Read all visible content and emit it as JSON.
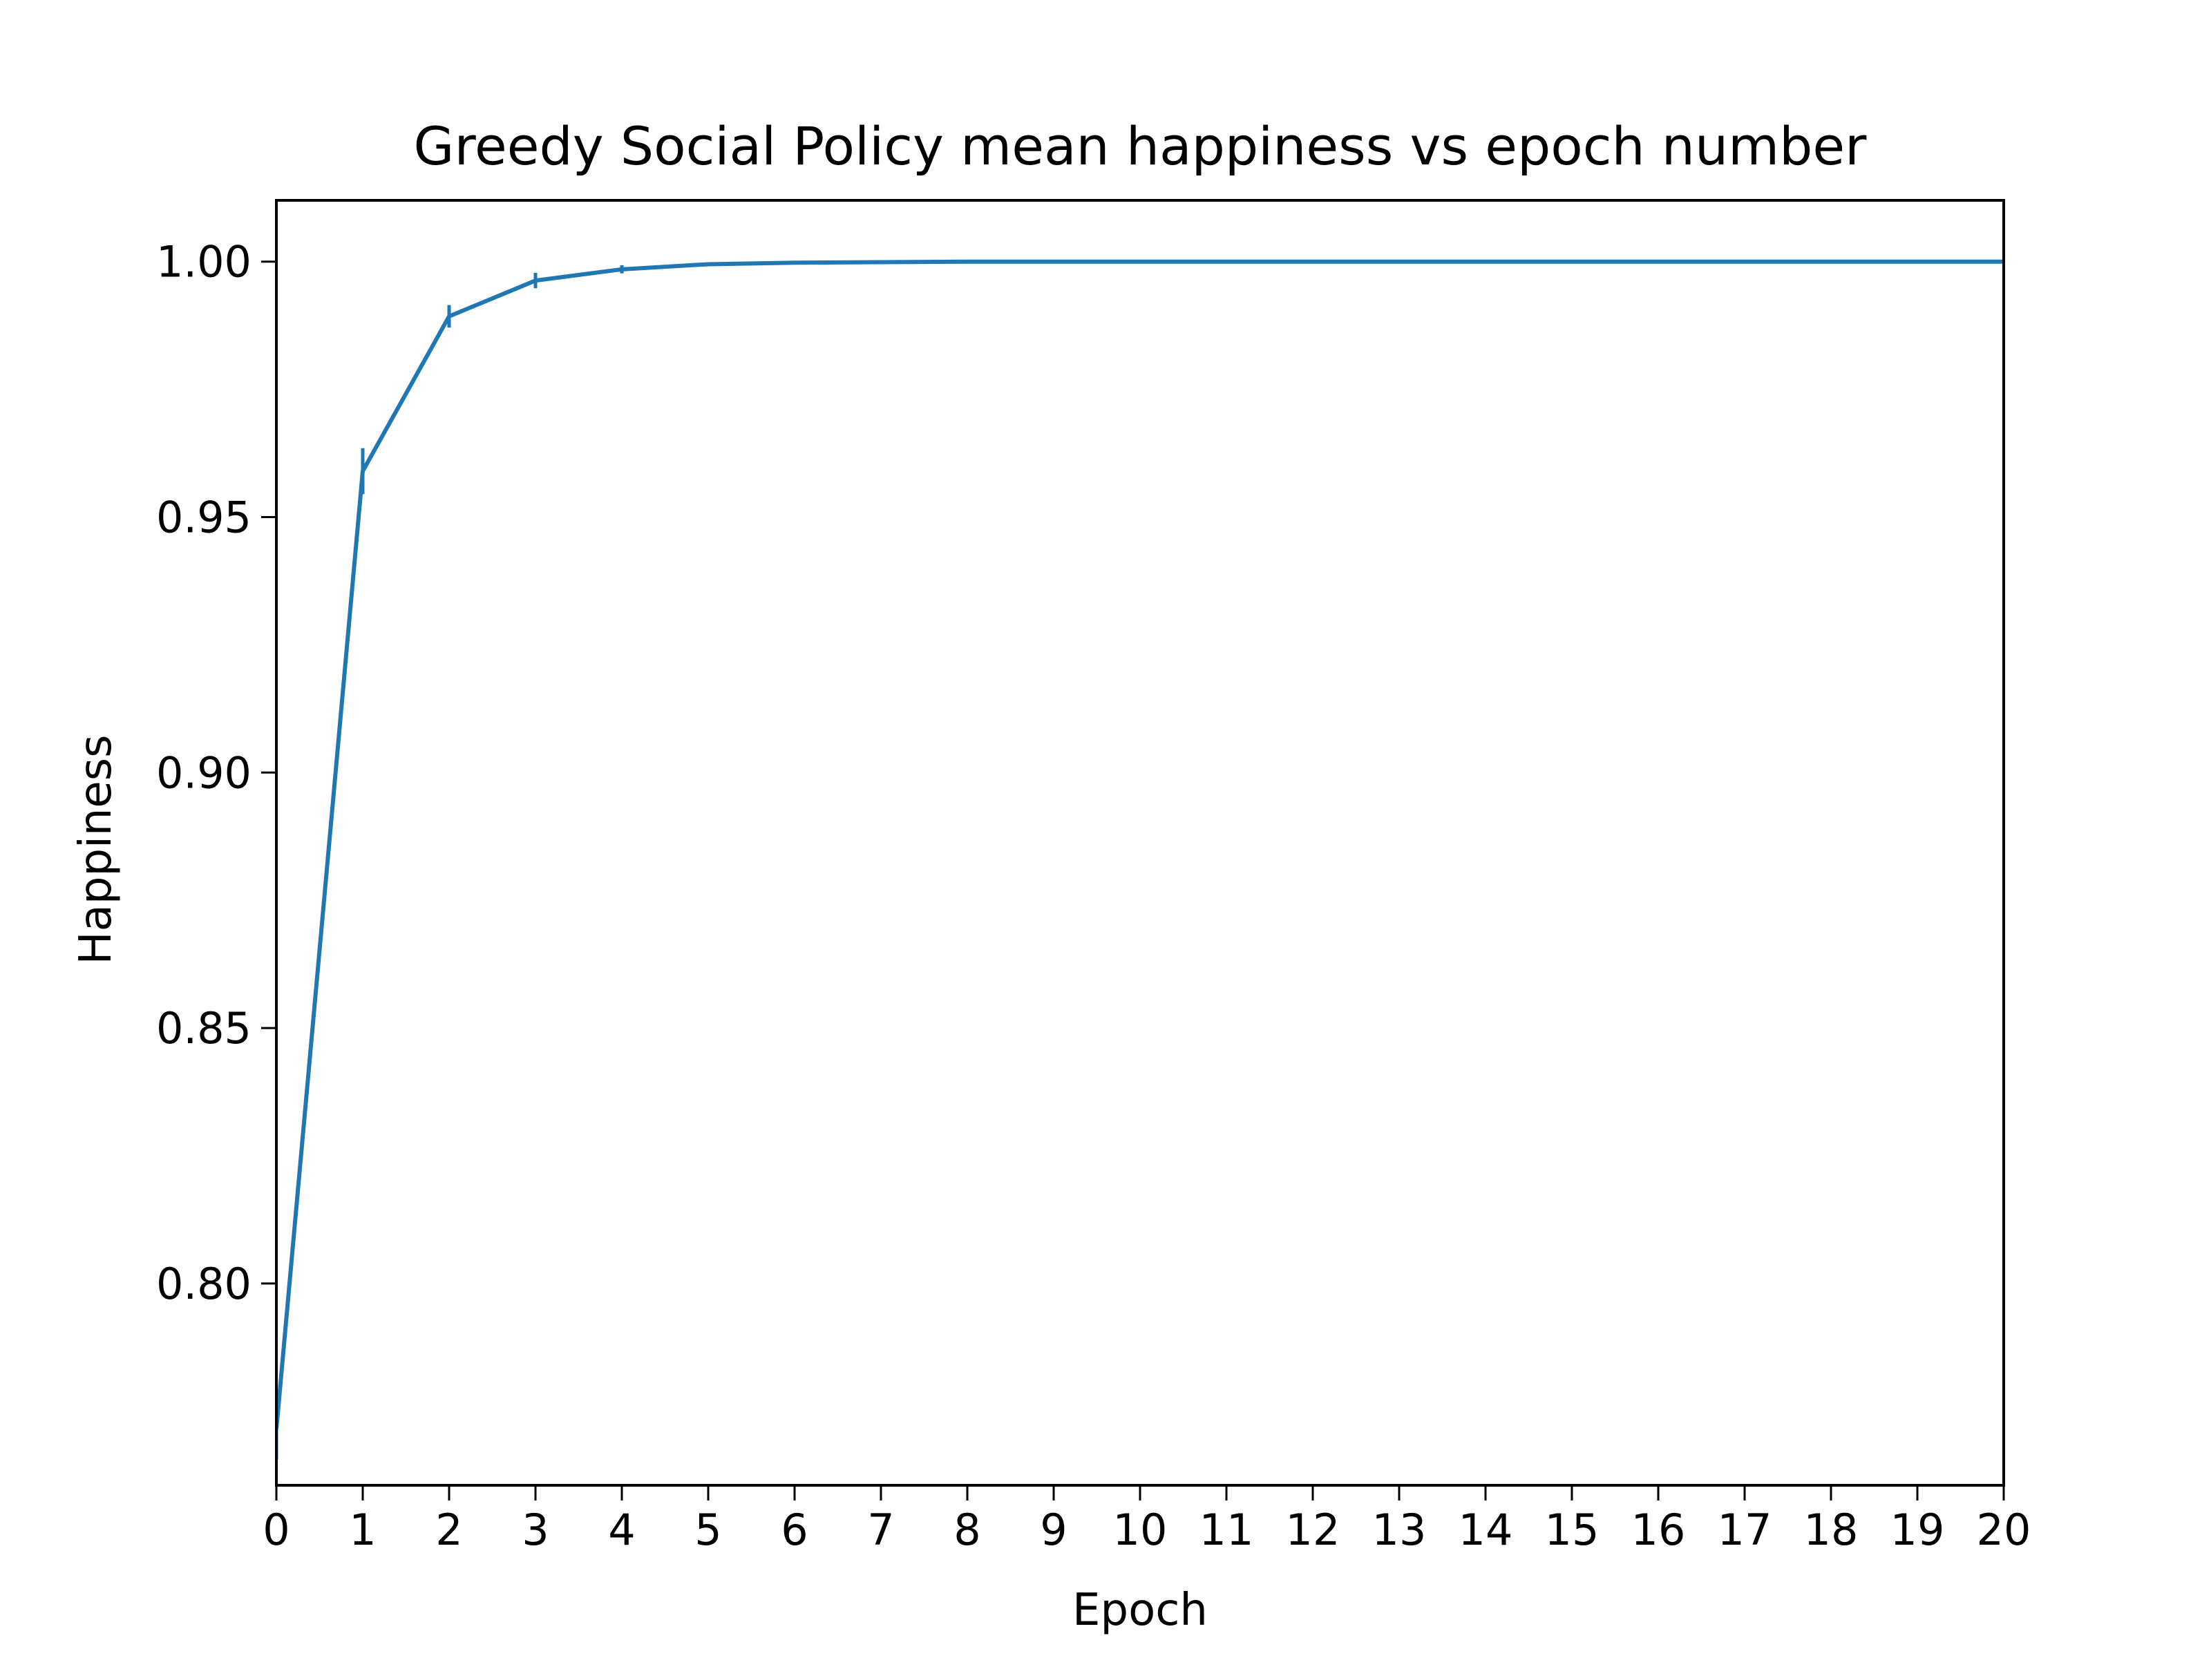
{
  "chart_data": {
    "type": "line",
    "title": "Greedy Social Policy mean happiness vs epoch number",
    "xlabel": "Epoch",
    "ylabel": "Happiness",
    "xlim": [
      0,
      20
    ],
    "ylim": [
      0.7605,
      1.012
    ],
    "xticks": [
      0,
      1,
      2,
      3,
      4,
      5,
      6,
      7,
      8,
      9,
      10,
      11,
      12,
      13,
      14,
      15,
      16,
      17,
      18,
      19,
      20
    ],
    "xtick_labels": [
      "0",
      "1",
      "2",
      "3",
      "4",
      "5",
      "6",
      "7",
      "8",
      "9",
      "10",
      "11",
      "12",
      "13",
      "14",
      "15",
      "16",
      "17",
      "18",
      "19",
      "20"
    ],
    "yticks": [
      0.8,
      0.85,
      0.9,
      0.95,
      1.0
    ],
    "ytick_labels": [
      "0.80",
      "0.85",
      "0.90",
      "0.95",
      "1.00"
    ],
    "grid": false,
    "legend": null,
    "series": [
      {
        "color": "#1f77b4",
        "x": [
          0,
          1,
          2,
          3,
          4,
          5,
          6,
          7,
          8,
          9,
          10,
          11,
          12,
          13,
          14,
          15,
          16,
          17,
          18,
          19,
          20
        ],
        "y": [
          0.7715,
          0.959,
          0.9893,
          0.9963,
          0.9985,
          0.9995,
          0.9998,
          0.9999,
          1.0,
          1.0,
          1.0,
          1.0,
          1.0,
          1.0,
          1.0,
          1.0,
          1.0,
          1.0,
          1.0,
          1.0,
          1.0
        ],
        "yerr": [
          0.006,
          0.0045,
          0.0022,
          0.0015,
          0.0008,
          0.0004,
          0.0002,
          0.0001,
          0.0,
          0.0,
          0.0,
          0.0,
          0.0,
          0.0,
          0.0,
          0.0,
          0.0,
          0.0,
          0.0,
          0.0,
          0.0
        ]
      }
    ]
  }
}
